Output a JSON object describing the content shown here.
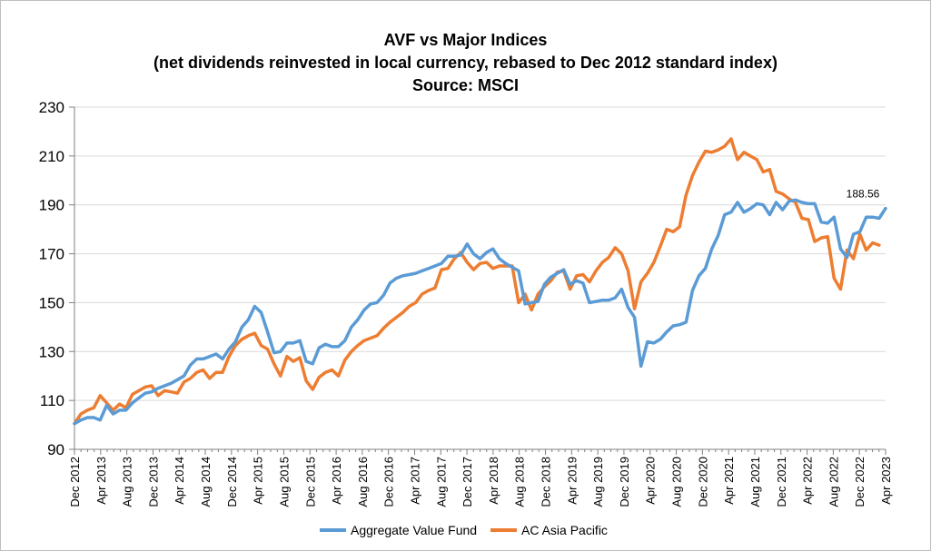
{
  "chart_data": {
    "type": "line",
    "title": "AVF vs Major  Indices",
    "subtitle": "(net dividends reinvested in local currency, rebased to Dec 2012 standard  index)",
    "source": "Source: MSCI",
    "xlabel": "",
    "ylabel": "",
    "ylim": [
      90,
      230
    ],
    "yticks": [
      "90",
      "110",
      "130",
      "150",
      "170",
      "190",
      "210",
      "230"
    ],
    "grid": "horizontal",
    "legend_position": "bottom",
    "x_tick_labels": [
      "Dec 2012",
      "Apr 2013",
      "Aug 2013",
      "Dec 2013",
      "Apr 2014",
      "Aug 2014",
      "Dec 2014",
      "Apr 2015",
      "Aug 2015",
      "Dec 2015",
      "Apr 2016",
      "Aug 2016",
      "Dec 2016",
      "Apr 2017",
      "Aug 2017",
      "Dec 2017",
      "Apr 2018",
      "Aug 2018",
      "Dec 2018",
      "Apr 2019",
      "Aug 2019",
      "Dec 2019",
      "Apr 2020",
      "Aug 2020",
      "Dec 2020",
      "Apr 2021",
      "Aug 2021",
      "Dec 2021",
      "Apr 2022",
      "Aug 2022",
      "Dec 2022",
      "Apr 2023"
    ],
    "x_start": "Dec 2012",
    "x_end": "Apr 2023",
    "end_label": "188.56",
    "series": [
      {
        "name": "Aggregate Value Fund",
        "color": "#5b9bd5",
        "values": [
          100.5,
          102,
          103,
          103,
          102,
          108,
          104.5,
          106,
          106,
          109,
          111,
          113,
          113.5,
          115,
          116,
          117,
          118.5,
          120,
          124.5,
          127,
          127,
          128,
          129,
          127,
          131,
          134,
          140,
          143,
          148.5,
          146,
          138,
          129.5,
          130,
          133.5,
          133.5,
          134.5,
          126,
          125,
          131.5,
          133,
          132,
          132,
          134.5,
          140,
          143,
          147,
          149.5,
          150,
          153,
          158,
          160,
          161,
          161.5,
          162,
          163,
          164,
          165,
          166,
          169,
          169,
          169.5,
          174,
          170,
          168,
          170.5,
          172,
          168,
          166,
          164.5,
          163,
          149.5,
          150,
          150.5,
          157.5,
          160.5,
          162,
          163.5,
          157.5,
          159,
          158,
          150,
          150.5,
          151,
          151,
          152,
          155.5,
          148,
          144,
          124,
          134,
          133.5,
          135,
          138,
          140.5,
          141,
          142,
          155,
          161,
          164,
          172,
          177.5,
          186,
          187,
          191,
          187,
          188.5,
          190.5,
          190,
          186,
          191,
          188,
          191.5,
          192,
          191,
          190.5,
          190.5,
          183,
          182.5,
          185,
          172,
          168.5,
          178,
          179,
          185,
          185,
          184.5,
          188.56
        ]
      },
      {
        "name": "AC Asia Pacific",
        "color": "#ed7d31",
        "values": [
          100.5,
          104.5,
          106,
          107,
          112,
          109,
          106,
          108.5,
          107,
          112.5,
          114,
          115.5,
          116,
          112,
          114,
          113.5,
          113,
          117.5,
          119,
          121.5,
          122.5,
          119,
          121.5,
          121.5,
          128,
          132.5,
          135,
          136.5,
          137.5,
          132.5,
          131,
          125,
          120,
          128,
          126,
          127.5,
          118,
          114.5,
          119.5,
          121.5,
          122.5,
          120,
          126.5,
          130,
          132.5,
          134.5,
          135.5,
          136.5,
          139.5,
          142,
          144,
          146,
          148.5,
          150,
          153.5,
          155,
          156,
          163.5,
          164,
          168,
          170.5,
          166.5,
          163.5,
          166,
          166.5,
          164,
          165,
          165,
          165,
          150,
          153.5,
          147,
          153.5,
          156.5,
          159,
          162.5,
          163,
          155.5,
          161,
          161.5,
          158.5,
          163,
          166.5,
          168.5,
          172.5,
          170,
          163,
          147.5,
          158.5,
          162,
          166.5,
          173,
          180,
          179,
          181,
          194,
          202,
          207.5,
          212,
          211.5,
          212.5,
          214,
          217,
          208.5,
          211.5,
          210,
          208.5,
          203.5,
          204.5,
          195.5,
          194.5,
          192.5,
          191,
          184.5,
          184,
          175,
          176.5,
          177,
          160,
          155.5,
          171.5,
          168,
          178,
          171.5,
          174.5,
          173.5
        ]
      }
    ]
  }
}
